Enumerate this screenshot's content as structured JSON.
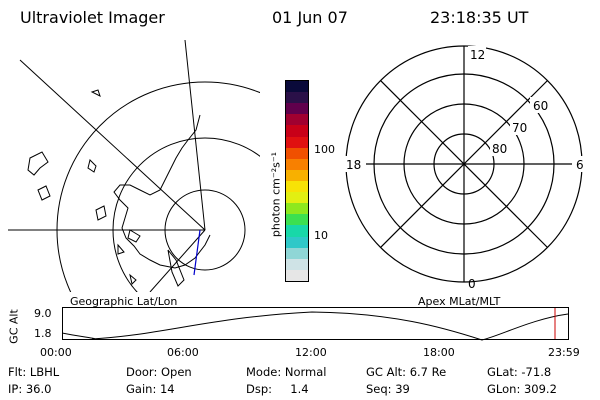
{
  "header": {
    "instrument": "Ultraviolet Imager",
    "date": "01 Jun 07",
    "time": "23:18:35 UT"
  },
  "colorbar": {
    "unit_label": "photon cm⁻²s⁻¹",
    "tick_100": "100",
    "tick_10": "10",
    "colors": [
      "#e6e6e6",
      "#cfe3e6",
      "#8fd6d6",
      "#2fc8c8",
      "#18d8a8",
      "#3ce050",
      "#8ee81e",
      "#e2ef12",
      "#f7e206",
      "#f8b000",
      "#f88000",
      "#f05000",
      "#e01010",
      "#c80018",
      "#a00030",
      "#60004c",
      "#2a1048",
      "#0a0a3a"
    ]
  },
  "geo_map": {
    "label": "Geographic Lat/Lon"
  },
  "polar_plot": {
    "label": "Apex MLat/MLT",
    "mlt_top": "12",
    "mlt_left": "18",
    "mlt_right": "6",
    "mlt_bottom": "0",
    "lat_60": "60",
    "lat_70": "70",
    "lat_80": "80"
  },
  "altitude_strip": {
    "axis_label": "GC Alt",
    "y_top": "9.0",
    "y_bottom": "1.8",
    "x_ticks": [
      "00:00",
      "06:00",
      "12:00",
      "18:00",
      "23:59"
    ],
    "current_marker_color": "#cc0000"
  },
  "footer": {
    "flt": "Flt: LBHL",
    "door": "Door: Open",
    "mode": "Mode: Normal",
    "gc_alt": "GC Alt: 6.7 Re",
    "glat": "GLat: -71.8",
    "ip": "IP: 36.0",
    "gain": "Gain: 14",
    "dsp": "Dsp:     1.4",
    "seq": "Seq: 39",
    "glon": "GLon: 309.2"
  }
}
